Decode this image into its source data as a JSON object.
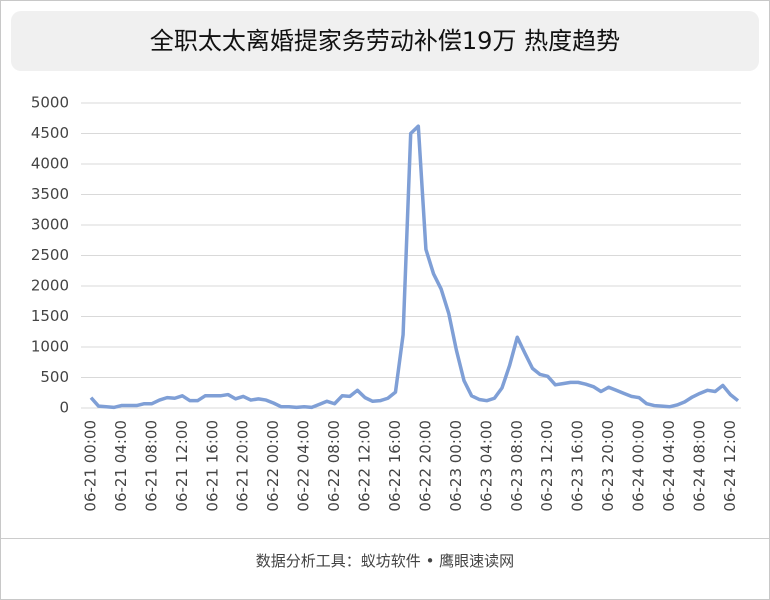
{
  "chart_data": {
    "type": "line",
    "title": "全职太太离婚提家务劳动补偿19万 热度趋势",
    "footer": "数据分析工具：蚁坊软件 • 鹰眼速读网",
    "categories": [
      "06-21 00:00",
      null,
      null,
      null,
      "06-21 04:00",
      null,
      null,
      null,
      "06-21 08:00",
      null,
      null,
      null,
      "06-21 12:00",
      null,
      null,
      null,
      "06-21 16:00",
      null,
      null,
      null,
      "06-21 20:00",
      null,
      null,
      null,
      "06-22 00:00",
      null,
      null,
      null,
      "06-22 04:00",
      null,
      null,
      null,
      "06-22 08:00",
      null,
      null,
      null,
      "06-22 12:00",
      null,
      null,
      null,
      "06-22 16:00",
      null,
      null,
      null,
      "06-22 20:00",
      null,
      null,
      null,
      "06-23 00:00",
      null,
      null,
      null,
      "06-23 04:00",
      null,
      null,
      null,
      "06-23 08:00",
      null,
      null,
      null,
      "06-23 12:00",
      null,
      null,
      null,
      "06-23 16:00",
      null,
      null,
      null,
      "06-23 20:00",
      null,
      null,
      null,
      "06-24 00:00",
      null,
      null,
      null,
      "06-24 04:00",
      null,
      null,
      null,
      "06-24 08:00",
      null,
      null,
      null,
      "06-24 12:00",
      null
    ],
    "series": [
      {
        "name": "热度",
        "color": "#7f9fd6",
        "values": [
          170,
          30,
          20,
          10,
          40,
          40,
          40,
          70,
          70,
          130,
          170,
          160,
          200,
          120,
          120,
          200,
          200,
          200,
          220,
          150,
          190,
          130,
          150,
          130,
          80,
          20,
          20,
          10,
          20,
          10,
          60,
          110,
          70,
          200,
          190,
          290,
          170,
          110,
          120,
          160,
          260,
          1200,
          4500,
          4620,
          2600,
          2200,
          1950,
          1550,
          950,
          450,
          200,
          140,
          120,
          160,
          330,
          700,
          1160,
          900,
          650,
          550,
          520,
          380,
          400,
          420,
          420,
          390,
          350,
          270,
          340,
          290,
          240,
          190,
          170,
          70,
          40,
          30,
          20,
          50,
          100,
          180,
          240,
          290,
          270,
          370,
          220,
          120
        ]
      }
    ],
    "ylim": [
      0,
      5000
    ],
    "yticks": [
      0,
      500,
      1000,
      1500,
      2000,
      2500,
      3000,
      3500,
      4000,
      4500,
      5000
    ],
    "grid": true
  }
}
